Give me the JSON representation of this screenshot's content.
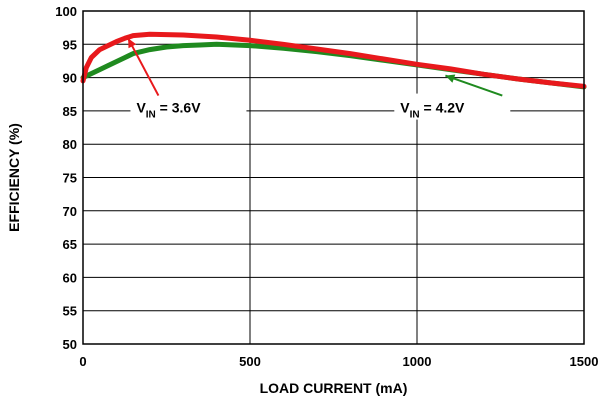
{
  "chart_data": {
    "type": "line",
    "xlabel": "LOAD CURRENT (mA)",
    "ylabel": "EFFICIENCY (%)",
    "xlim": [
      0,
      1500
    ],
    "ylim": [
      50,
      100
    ],
    "x_ticks": [
      "0",
      "500",
      "1000",
      "1500"
    ],
    "y_ticks": [
      "50",
      "55",
      "60",
      "65",
      "70",
      "75",
      "80",
      "85",
      "90",
      "95",
      "100"
    ],
    "grid": true,
    "series": [
      {
        "name_main": "V",
        "name_sub": "IN",
        "name_rest": " = 3.6V",
        "color": "#e8191c",
        "x": [
          0,
          10,
          25,
          50,
          75,
          100,
          125,
          150,
          200,
          300,
          400,
          500,
          600,
          700,
          800,
          900,
          1000,
          1100,
          1200,
          1300,
          1400,
          1500
        ],
        "y": [
          89.5,
          91.5,
          93.0,
          94.2,
          94.8,
          95.4,
          95.9,
          96.3,
          96.5,
          96.4,
          96.1,
          95.6,
          95.0,
          94.3,
          93.6,
          92.8,
          92.0,
          91.3,
          90.5,
          89.8,
          89.2,
          88.7
        ]
      },
      {
        "name_main": "V",
        "name_sub": "IN",
        "name_rest": " = 4.2V",
        "color": "#1f8a1f",
        "x": [
          0,
          25,
          50,
          75,
          100,
          125,
          150,
          200,
          250,
          300,
          350,
          400,
          500,
          600,
          700,
          800,
          900,
          1000,
          1100,
          1200,
          1300,
          1400,
          1500
        ],
        "y": [
          90.0,
          90.6,
          91.2,
          91.8,
          92.4,
          93.0,
          93.6,
          94.2,
          94.6,
          94.8,
          94.9,
          95.0,
          94.8,
          94.4,
          93.9,
          93.3,
          92.6,
          91.9,
          91.2,
          90.5,
          89.8,
          89.2,
          88.6
        ]
      }
    ],
    "annotations": [
      {
        "series": 0,
        "label_x": 160,
        "label_y": 85.2,
        "arrow_to_x": 135,
        "arrow_to_y": 95.9
      },
      {
        "series": 1,
        "label_x": 950,
        "label_y": 85.2,
        "arrow_to_x": 1085,
        "arrow_to_y": 90.3
      }
    ]
  }
}
